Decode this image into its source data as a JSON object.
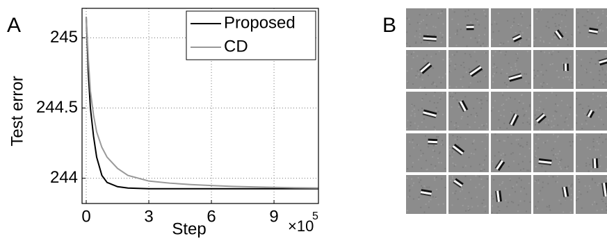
{
  "panel_labels": [
    "A",
    "B"
  ],
  "chart_data": {
    "type": "line",
    "xlabel": "Step",
    "ylabel": "Test error",
    "x_multiplier": "×10",
    "x_multiplier_exponent": "5",
    "x": [
      0,
      0.1,
      0.2,
      0.35,
      0.5,
      0.75,
      1,
      1.5,
      2,
      3,
      4,
      5,
      6,
      7,
      8,
      9,
      10,
      11.13
    ],
    "series": [
      {
        "name": "Proposed",
        "color": "#000000",
        "values": [
          245.15,
          244.75,
          244.5,
          244.3,
          244.15,
          244.02,
          243.97,
          243.94,
          243.93,
          243.925,
          243.925,
          243.925,
          243.925,
          243.925,
          243.925,
          243.925,
          243.925,
          243.925
        ]
      },
      {
        "name": "CD",
        "color": "#999999",
        "values": [
          245.15,
          244.85,
          244.62,
          244.45,
          244.33,
          244.22,
          244.15,
          244.07,
          244.02,
          243.98,
          243.965,
          243.955,
          243.948,
          243.942,
          243.938,
          243.935,
          243.932,
          243.93
        ]
      }
    ],
    "xlim": [
      -0.2,
      11.13
    ],
    "ylim": [
      243.82,
      245.21
    ],
    "xticks": [
      0,
      3,
      6,
      9
    ],
    "yticks": [
      244,
      244.5,
      245
    ],
    "grid": true,
    "legend": "upper right"
  }
}
